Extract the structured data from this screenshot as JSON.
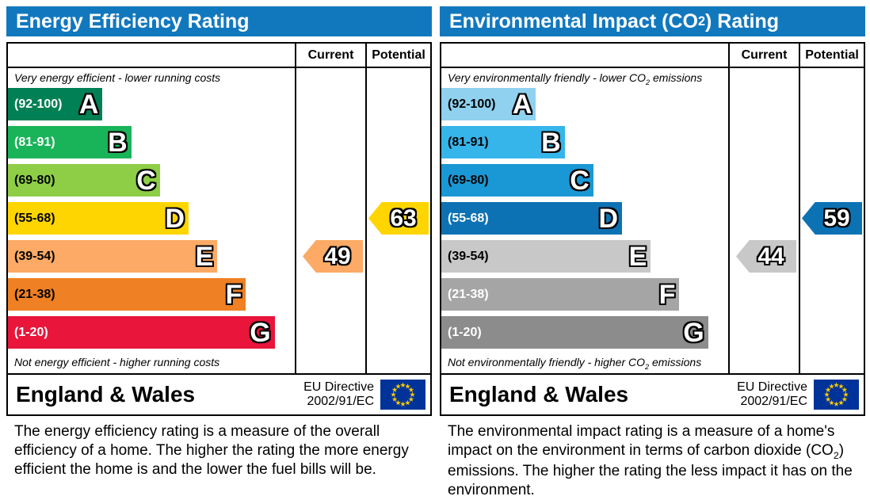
{
  "colors": {
    "header_blue": "#1278be",
    "border": "#000000",
    "flag_blue": "#003399",
    "flag_star": "#ffcc00"
  },
  "page": {
    "left": {
      "title": {
        "pre": "Energy Efficiency Rating",
        "sub": "",
        "post": ""
      },
      "columns": {
        "current": "Current",
        "potential": "Potential"
      },
      "top_label": {
        "pre": "Very energy efficient - lower running costs",
        "sub": "",
        "post": ""
      },
      "bottom_label": {
        "pre": "Not energy efficient - higher running costs",
        "sub": "",
        "post": ""
      },
      "bands": [
        {
          "letter": "A",
          "range": "(92-100)",
          "color": "#008054",
          "text_color": "#ffffff",
          "width_pct": 33
        },
        {
          "letter": "B",
          "range": "(81-91)",
          "color": "#19b459",
          "text_color": "#ffffff",
          "width_pct": 43
        },
        {
          "letter": "C",
          "range": "(69-80)",
          "color": "#8dce46",
          "text_color": "#000000",
          "width_pct": 53
        },
        {
          "letter": "D",
          "range": "(55-68)",
          "color": "#ffd500",
          "text_color": "#000000",
          "width_pct": 63
        },
        {
          "letter": "E",
          "range": "(39-54)",
          "color": "#fcaa65",
          "text_color": "#000000",
          "width_pct": 73
        },
        {
          "letter": "F",
          "range": "(21-38)",
          "color": "#ef8023",
          "text_color": "#000000",
          "width_pct": 83
        },
        {
          "letter": "G",
          "range": "(1-20)",
          "color": "#e9153b",
          "text_color": "#ffffff",
          "width_pct": 93
        }
      ],
      "current_arrow": {
        "value": "49",
        "color": "#fcaa65",
        "row": 4
      },
      "potential_arrow": {
        "value": "63",
        "color": "#ffd500",
        "row": 3
      },
      "footer": {
        "region": "England & Wales",
        "directive1": "EU Directive",
        "directive2": "2002/91/EC"
      },
      "description": {
        "pre": "The energy efficiency rating is a measure of the overall efficiency of a home. The higher the rating the more energy efficient the home is and the lower the fuel bills will be.",
        "sub": "",
        "post": ""
      }
    },
    "right": {
      "title": {
        "pre": "Environmental Impact (CO",
        "sub": "2",
        "post": ") Rating"
      },
      "columns": {
        "current": "Current",
        "potential": "Potential"
      },
      "top_label": {
        "pre": "Very environmentally friendly - lower CO",
        "sub": "2",
        "post": " emissions"
      },
      "bottom_label": {
        "pre": "Not environmentally friendly - higher CO",
        "sub": "2",
        "post": " emissions"
      },
      "bands": [
        {
          "letter": "A",
          "range": "(92-100)",
          "color": "#8fd1ee",
          "text_color": "#000000",
          "width_pct": 33
        },
        {
          "letter": "B",
          "range": "(81-91)",
          "color": "#36b5ea",
          "text_color": "#000000",
          "width_pct": 43
        },
        {
          "letter": "C",
          "range": "(69-80)",
          "color": "#1a98d5",
          "text_color": "#000000",
          "width_pct": 53
        },
        {
          "letter": "D",
          "range": "(55-68)",
          "color": "#0d72b4",
          "text_color": "#ffffff",
          "width_pct": 63
        },
        {
          "letter": "E",
          "range": "(39-54)",
          "color": "#c8c8c8",
          "text_color": "#000000",
          "width_pct": 73
        },
        {
          "letter": "F",
          "range": "(21-38)",
          "color": "#a5a5a5",
          "text_color": "#ffffff",
          "width_pct": 83
        },
        {
          "letter": "G",
          "range": "(1-20)",
          "color": "#8c8c8c",
          "text_color": "#ffffff",
          "width_pct": 93
        }
      ],
      "current_arrow": {
        "value": "44",
        "color": "#c8c8c8",
        "row": 4
      },
      "potential_arrow": {
        "value": "59",
        "color": "#0d72b4",
        "row": 3
      },
      "footer": {
        "region": "England & Wales",
        "directive1": "EU Directive",
        "directive2": "2002/91/EC"
      },
      "description": {
        "pre": "The environmental impact rating is a measure of a home's impact on the environment in terms of carbon dioxide (CO",
        "sub": "2",
        "post": ") emissions. The higher the rating the less impact it has on the environment."
      }
    }
  },
  "chart_data": [
    {
      "type": "bar",
      "title": "Energy Efficiency Rating",
      "categories": [
        "A (92-100)",
        "B (81-91)",
        "C (69-80)",
        "D (55-68)",
        "E (39-54)",
        "F (21-38)",
        "G (1-20)"
      ],
      "band_colors": [
        "#008054",
        "#19b459",
        "#8dce46",
        "#ffd500",
        "#fcaa65",
        "#ef8023",
        "#e9153b"
      ],
      "band_bar_length_pct": [
        33,
        43,
        53,
        63,
        73,
        83,
        93
      ],
      "scale": [
        1,
        100
      ],
      "current": 49,
      "current_band": "E",
      "potential": 63,
      "potential_band": "D",
      "caption_top": "Very energy efficient - lower running costs",
      "caption_bottom": "Not energy efficient - higher running costs",
      "footer": "England & Wales, EU Directive 2002/91/EC"
    },
    {
      "type": "bar",
      "title": "Environmental Impact (CO2) Rating",
      "categories": [
        "A (92-100)",
        "B (81-91)",
        "C (69-80)",
        "D (55-68)",
        "E (39-54)",
        "F (21-38)",
        "G (1-20)"
      ],
      "band_colors": [
        "#8fd1ee",
        "#36b5ea",
        "#1a98d5",
        "#0d72b4",
        "#c8c8c8",
        "#a5a5a5",
        "#8c8c8c"
      ],
      "band_bar_length_pct": [
        33,
        43,
        53,
        63,
        73,
        83,
        93
      ],
      "scale": [
        1,
        100
      ],
      "current": 44,
      "current_band": "E",
      "potential": 59,
      "potential_band": "D",
      "caption_top": "Very environmentally friendly - lower CO2 emissions",
      "caption_bottom": "Not environmentally friendly - higher CO2 emissions",
      "footer": "England & Wales, EU Directive 2002/91/EC"
    }
  ]
}
